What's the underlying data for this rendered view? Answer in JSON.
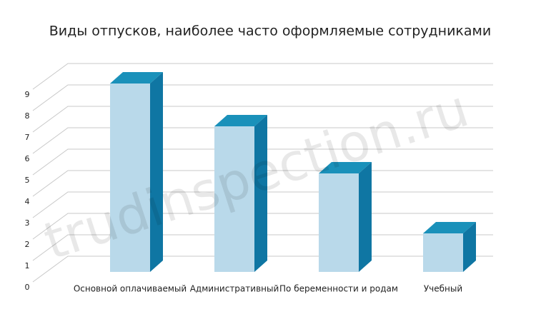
{
  "chart_data": {
    "type": "bar3d",
    "title": "Виды отпусков, наиболее часто оформляемые сотрудниками",
    "watermark": "trudinspection.ru",
    "categories": [
      "Основной оплачиваемый",
      "Административный",
      "По беременности и родам",
      "Учебный"
    ],
    "values": [
      8.8,
      6.8,
      4.6,
      1.8
    ],
    "colors": {
      "front": "#b9d9ea",
      "side": "#0f76a3",
      "top": "#1a91ba"
    },
    "ylim": [
      0,
      9
    ],
    "yticks": [
      0,
      1,
      2,
      3,
      4,
      5,
      6,
      7,
      8,
      9
    ],
    "grid": true
  }
}
